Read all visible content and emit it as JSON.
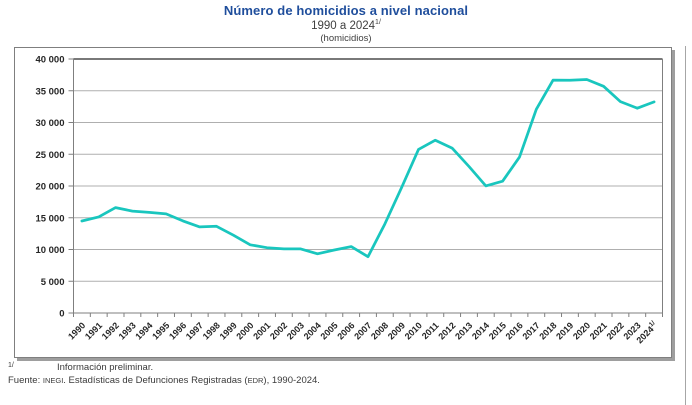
{
  "header": {
    "title": "Número de homicidios a nivel nacional",
    "subtitle": "1990 a 2024",
    "subtitle_superscript": "1/",
    "unit_label": "(homicidios)"
  },
  "colors": {
    "title_blue": "#1F4E9C",
    "line_teal": "#19C6BE",
    "gridline": "#AFAFAF",
    "axis": "#7F7F7F",
    "plot_top_border": "#4D4D4D"
  },
  "chart_data": {
    "type": "line",
    "title": "Número de homicidios a nivel nacional",
    "subtitle": "1990 a 2024 (homicidios)",
    "xlabel": "",
    "ylabel": "",
    "grid": true,
    "legend": "none",
    "ylim": [
      0,
      40000
    ],
    "ytick_values": [
      0,
      5000,
      10000,
      15000,
      20000,
      25000,
      30000,
      35000,
      40000
    ],
    "ytick_labels": [
      "0",
      "5 000",
      "10 000",
      "15 000",
      "20 000",
      "25 000",
      "30 000",
      "35 000",
      "40 000"
    ],
    "x_labels": [
      "1990",
      "1991",
      "1992",
      "1993",
      "1994",
      "1995",
      "1996",
      "1997",
      "1998",
      "1999",
      "2000",
      "2001",
      "2002",
      "2003",
      "2004",
      "2005",
      "2006",
      "2007",
      "2008",
      "2009",
      "2010",
      "2011",
      "2012",
      "2013",
      "2014",
      "2015",
      "2016",
      "2017",
      "2018",
      "2019",
      "2020",
      "2021",
      "2022",
      "2023",
      "2024"
    ],
    "last_label_superscript": "1/",
    "series": [
      {
        "name": "Homicidios",
        "values": [
          14493,
          15128,
          16594,
          16040,
          15839,
          15612,
          14505,
          13552,
          13656,
          12249,
          10737,
          10285,
          10088,
          10087,
          9329,
          9921,
          10452,
          8867,
          14006,
          19803,
          25757,
          27213,
          25967,
          23063,
          20010,
          20762,
          24559,
          32079,
          36685,
          36661,
          36773,
          35700,
          33287,
          32253,
          33241
        ]
      }
    ],
    "line_color": "#19C6BE"
  },
  "footer": {
    "footnote_marker": "1/",
    "footnote_text": "Información preliminar.",
    "source_prefix": "Fuente: ",
    "source_inegi": "INEGI",
    "source_mid": ". Estadísticas de Defunciones Registradas (",
    "source_edr": "EDR",
    "source_tail": "), 1990-2024."
  }
}
